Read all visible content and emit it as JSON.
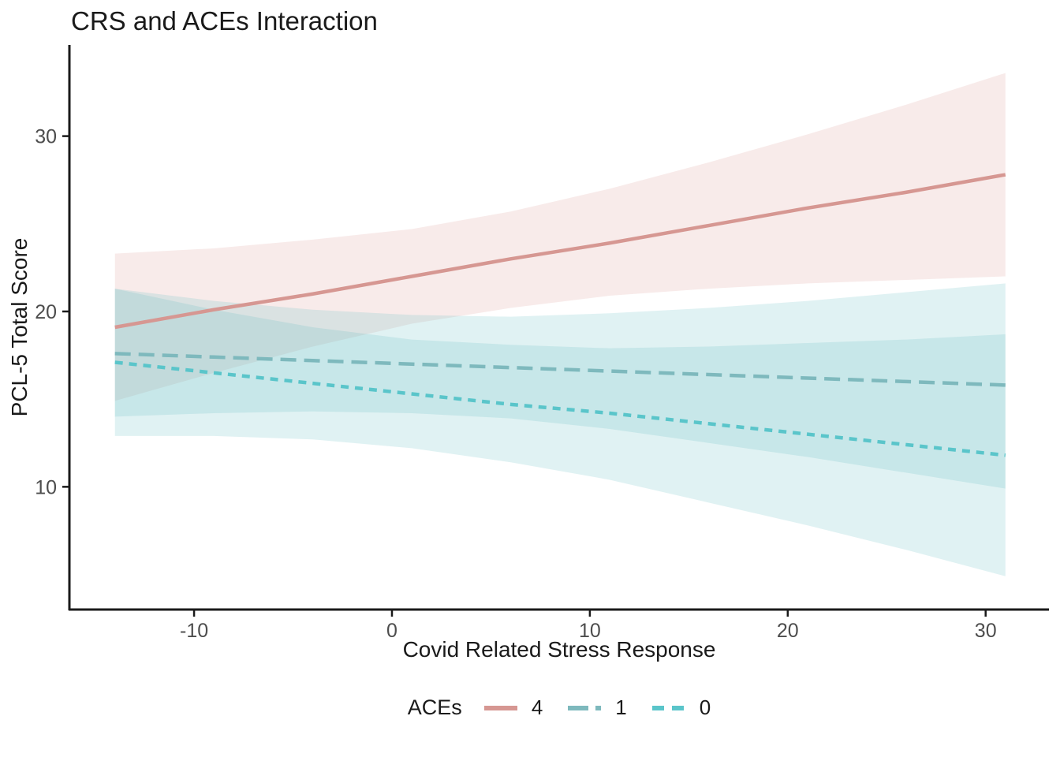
{
  "page": {
    "background": "#FFFFFF"
  },
  "chart_data": {
    "type": "line",
    "title": "CRS and ACEs Interaction",
    "xlabel": "Covid Related Stress Response",
    "ylabel": "PCL-5 Total Score",
    "legend_title": "ACEs",
    "legend_position": "bottom",
    "grid": false,
    "axis_color": "#1A1A1A",
    "tick_label_color": "#4D4D4D",
    "xlim": [
      -16.3,
      33.2
    ],
    "ylim": [
      3.0,
      35.2
    ],
    "x_ticks": [
      -10,
      0,
      10,
      20,
      30
    ],
    "y_ticks": [
      10,
      20,
      30
    ],
    "x": [
      -14,
      -9,
      -4,
      1,
      6,
      11,
      16,
      21,
      26,
      31
    ],
    "series": [
      {
        "name": "4",
        "line_style": "solid",
        "color": "#D69792",
        "fill": "#D6908B",
        "fill_opacity": 0.18,
        "values": [
          19.1,
          20.1,
          21.0,
          22.0,
          23.0,
          23.9,
          24.9,
          25.9,
          26.8,
          27.8
        ],
        "ci_upper": [
          23.3,
          23.6,
          24.1,
          24.7,
          25.7,
          27.0,
          28.5,
          30.1,
          31.8,
          33.6
        ],
        "ci_lower": [
          14.9,
          16.5,
          18.0,
          19.3,
          20.2,
          20.9,
          21.3,
          21.6,
          21.8,
          22.0
        ]
      },
      {
        "name": "1",
        "line_style": "dashed",
        "color": "#7EB9BD",
        "fill": "#64BDC2",
        "fill_opacity": 0.2,
        "values": [
          17.6,
          17.4,
          17.2,
          17.0,
          16.8,
          16.6,
          16.4,
          16.2,
          16.0,
          15.8
        ],
        "ci_upper": [
          21.3,
          20.6,
          20.1,
          19.8,
          19.7,
          19.9,
          20.2,
          20.6,
          21.1,
          21.6
        ],
        "ci_lower": [
          14.0,
          14.2,
          14.3,
          14.2,
          13.9,
          13.3,
          12.5,
          11.7,
          10.8,
          9.9
        ]
      },
      {
        "name": "0",
        "line_style": "dotted",
        "color": "#5AC5CA",
        "fill": "#64BDC2",
        "fill_opacity": 0.2,
        "values": [
          17.1,
          16.5,
          15.9,
          15.3,
          14.7,
          14.2,
          13.6,
          13.0,
          12.4,
          11.8
        ],
        "ci_upper": [
          21.3,
          20.1,
          19.1,
          18.4,
          18.1,
          17.9,
          18.0,
          18.2,
          18.4,
          18.7
        ],
        "ci_lower": [
          12.9,
          12.9,
          12.7,
          12.2,
          11.4,
          10.4,
          9.1,
          7.8,
          6.4,
          4.9
        ]
      }
    ]
  }
}
